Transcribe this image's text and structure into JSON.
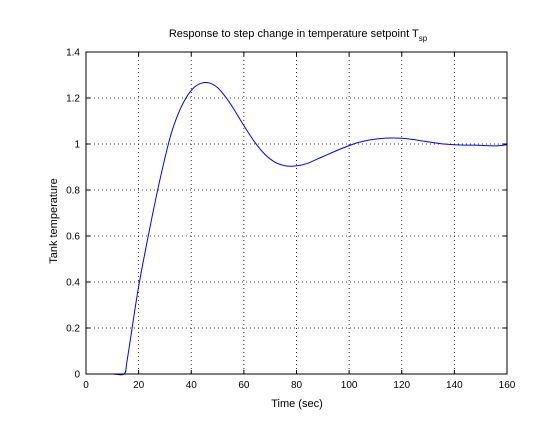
{
  "chart_data": {
    "type": "line",
    "title": "Response to step change in temperature setpoint T",
    "title_subscript": "sp",
    "xlabel": "Time (sec)",
    "ylabel": "Tank temperature",
    "xlim": [
      0,
      160
    ],
    "ylim": [
      0,
      1.4
    ],
    "xticks": [
      0,
      20,
      40,
      60,
      80,
      100,
      120,
      140,
      160
    ],
    "yticks": [
      0,
      0.2,
      0.4,
      0.6,
      0.8,
      1,
      1.2,
      1.4
    ],
    "xtick_labels": [
      "0",
      "20",
      "40",
      "60",
      "80",
      "100",
      "120",
      "140",
      "160"
    ],
    "ytick_labels": [
      "0",
      "0.2",
      "0.4",
      "0.6",
      "0.8",
      "1",
      "1.2",
      "1.4"
    ],
    "grid": true,
    "grid_style": "dotted",
    "colors": {
      "line": "#0000ff",
      "axes": "#000000",
      "grid": "#000000"
    },
    "series": [
      {
        "x": [
          0,
          5,
          10,
          14.5,
          15.5,
          17,
          20,
          24,
          28,
          32,
          35,
          38,
          41,
          44,
          47,
          50,
          53,
          56,
          60,
          64,
          68,
          72,
          76,
          80,
          84,
          88,
          92,
          96,
          100,
          104,
          108,
          112,
          116,
          120,
          124,
          128,
          132,
          136,
          140,
          144,
          148,
          152,
          156,
          160
        ],
        "y": [
          0,
          0,
          0,
          0,
          0.05,
          0.16,
          0.38,
          0.62,
          0.84,
          1.03,
          1.13,
          1.2,
          1.245,
          1.265,
          1.265,
          1.245,
          1.205,
          1.155,
          1.08,
          1.01,
          0.955,
          0.92,
          0.905,
          0.905,
          0.915,
          0.935,
          0.955,
          0.975,
          0.993,
          1.008,
          1.018,
          1.024,
          1.026,
          1.025,
          1.02,
          1.013,
          1.006,
          1.0,
          0.997,
          0.995,
          0.995,
          0.993,
          0.992,
          0.997
        ]
      }
    ]
  }
}
